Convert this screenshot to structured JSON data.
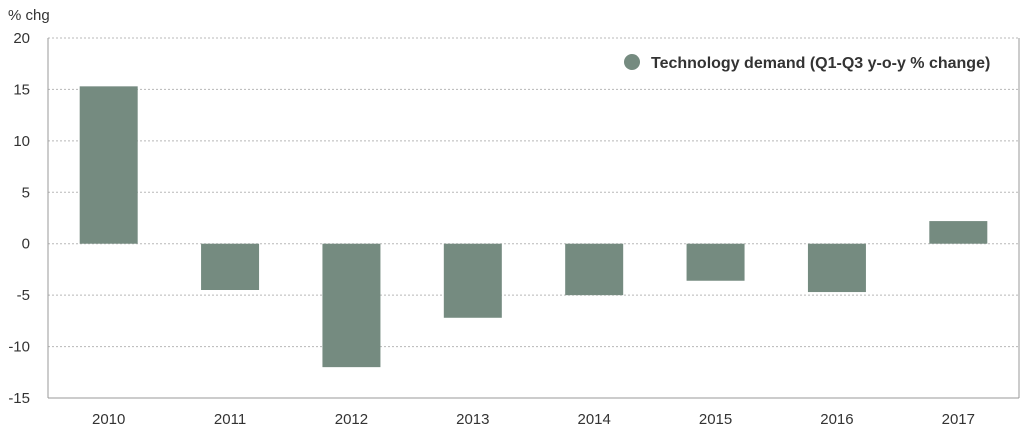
{
  "chart_data": {
    "type": "bar",
    "unit_label": "% chg",
    "categories": [
      "2010",
      "2011",
      "2012",
      "2013",
      "2014",
      "2015",
      "2016",
      "2017"
    ],
    "series": [
      {
        "name": "Technology demand (Q1-Q3 y-o-y % change)",
        "values": [
          15.3,
          -4.5,
          -12.0,
          -7.2,
          -5.0,
          -3.6,
          -4.7,
          2.2
        ],
        "color": "#758b80"
      }
    ],
    "ylim": [
      -15,
      20
    ],
    "yticks": [
      20,
      15,
      10,
      5,
      0,
      -5,
      -10,
      -15
    ],
    "grid": true,
    "legend_position": "top-right"
  }
}
